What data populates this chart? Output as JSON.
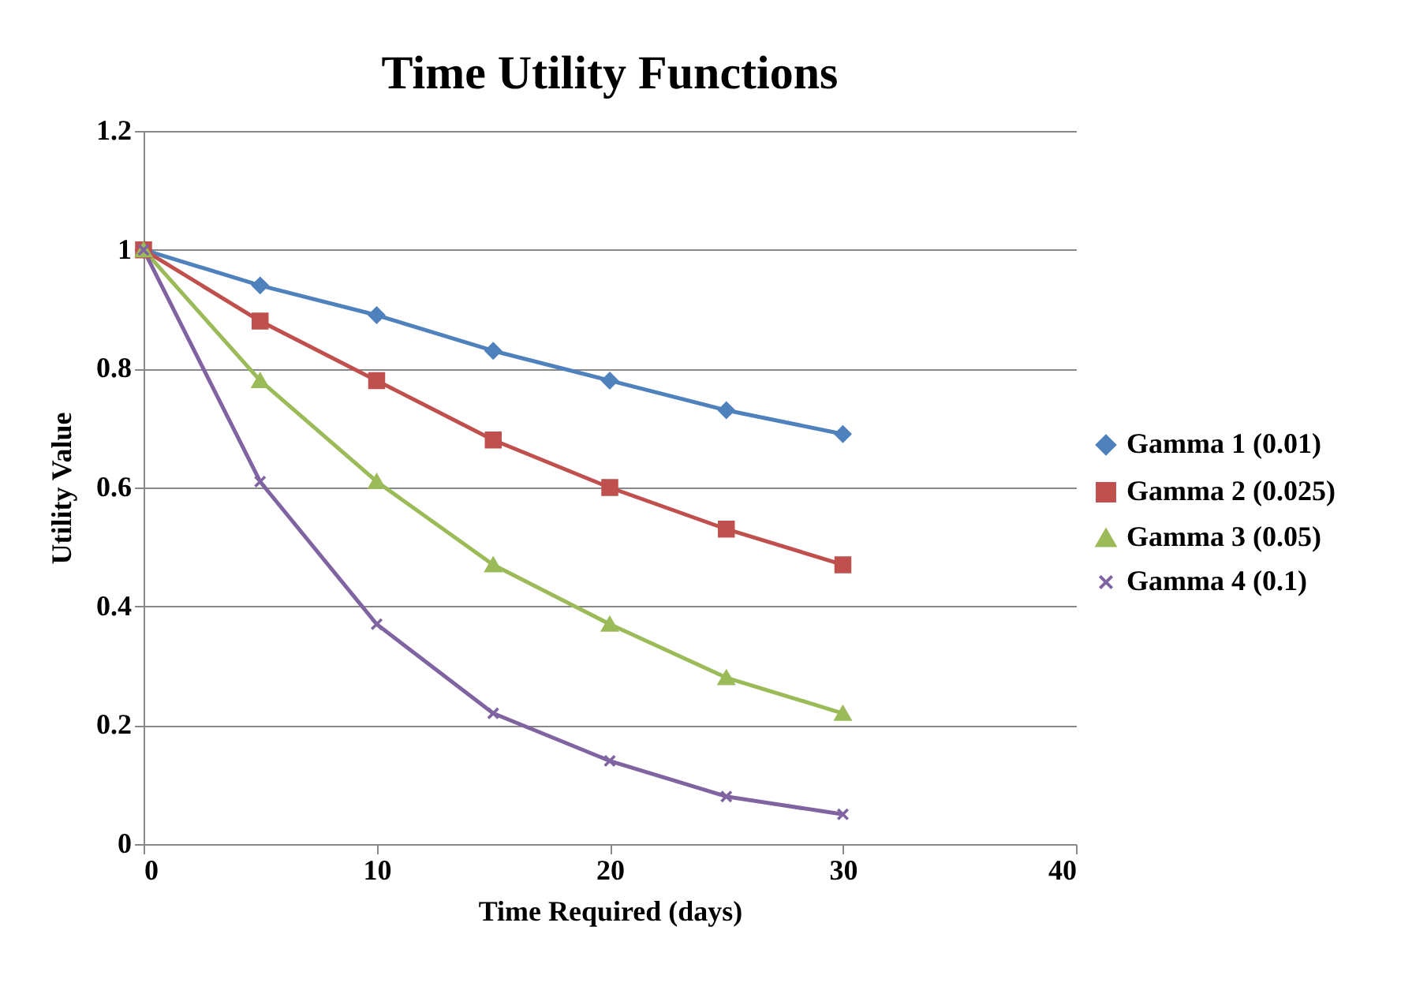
{
  "chart_data": {
    "type": "line",
    "title": "Time Utility Functions",
    "xlabel": "Time Required (days)",
    "ylabel": "Utility Value",
    "x": [
      0,
      5,
      10,
      15,
      20,
      25,
      30
    ],
    "series": [
      {
        "name": "Gamma 1 (0.01)",
        "color": "#4f81bd",
        "marker": "diamond",
        "values": [
          1,
          0.94,
          0.89,
          0.83,
          0.78,
          0.73,
          0.69
        ]
      },
      {
        "name": "Gamma 2 (0.025)",
        "color": "#c0504d",
        "marker": "square",
        "values": [
          1,
          0.88,
          0.78,
          0.68,
          0.6,
          0.53,
          0.47
        ]
      },
      {
        "name": "Gamma 3 (0.05)",
        "color": "#9bbb59",
        "marker": "triangle",
        "values": [
          1,
          0.78,
          0.61,
          0.47,
          0.37,
          0.28,
          0.22
        ]
      },
      {
        "name": "Gamma 4 (0.1)",
        "color": "#8064a2",
        "marker": "cross",
        "values": [
          1,
          0.61,
          0.37,
          0.22,
          0.14,
          0.08,
          0.05
        ]
      }
    ],
    "xlim": [
      0,
      40
    ],
    "xticks": [
      0,
      10,
      20,
      30,
      40
    ],
    "ylim": [
      0,
      1.2
    ],
    "yticks": [
      0,
      0.2,
      0.4,
      0.6,
      0.8,
      1,
      1.2
    ],
    "grid": "y",
    "legend": "right",
    "line_style": "solid"
  }
}
